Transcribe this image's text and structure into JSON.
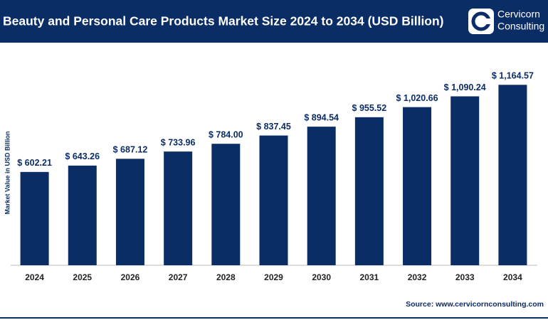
{
  "chart_data": {
    "type": "bar",
    "title": "Beauty and Personal Care Products Market Size 2024 to 2034 (USD Billion)",
    "logo": [
      "Cervicorn",
      "Consulting"
    ],
    "y_label": "Market Value in USD Billion",
    "source": "Source: www.cervicornconsulting.com",
    "categories": [
      "2024",
      "2025",
      "2026",
      "2027",
      "2028",
      "2029",
      "2030",
      "2031",
      "2032",
      "2033",
      "2034"
    ],
    "values": [
      602.21,
      643.26,
      687.12,
      733.96,
      784.0,
      837.45,
      894.54,
      955.52,
      1020.66,
      1090.24,
      1164.57
    ],
    "value_labels": [
      "$ 602.21",
      "$ 643.26",
      "$ 687.12",
      "$ 733.96",
      "$ 784.00",
      "$ 837.45",
      "$ 894.54",
      "$ 955.52",
      "$ 1,020.66",
      "$ 1,090.24",
      "$ 1,164.57"
    ],
    "color": "#0b2d66",
    "ylim": [
      0,
      1400
    ]
  }
}
